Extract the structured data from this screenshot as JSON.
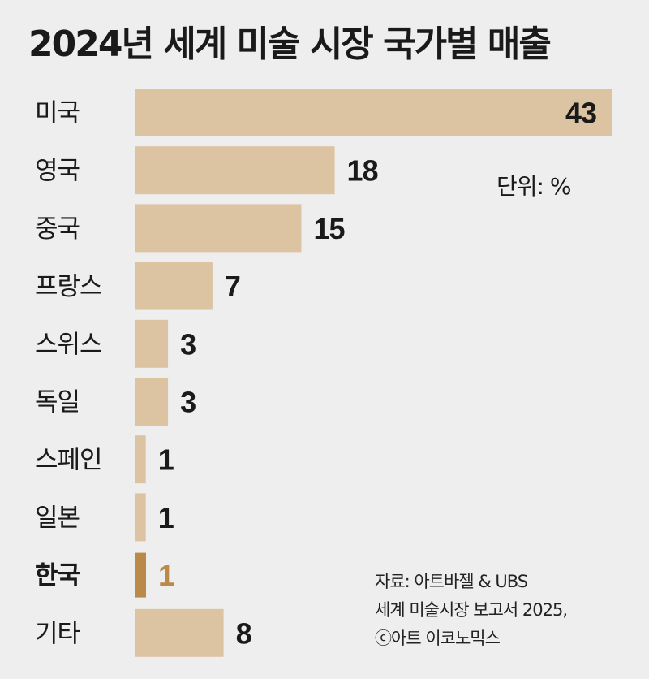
{
  "chart_data": {
    "type": "bar",
    "orientation": "horizontal",
    "title": "2024년 세계 미술 시장 국가별 매출",
    "unit": "단위: %",
    "categories": [
      "미국",
      "영국",
      "중국",
      "프랑스",
      "스위스",
      "독일",
      "스페인",
      "일본",
      "한국",
      "기타"
    ],
    "values": [
      43,
      18,
      15,
      7,
      3,
      3,
      1,
      1,
      1,
      8
    ],
    "highlight": "한국",
    "xlim": [
      0,
      43
    ],
    "grid": false,
    "legend": "none"
  },
  "colors": {
    "background": "#efeeee",
    "bar": "#dcc4a3",
    "highlight_bar": "#b98a4a",
    "highlight_text": "#b98a4a",
    "text": "#1a1a1a"
  },
  "source": {
    "line1": "자료: 아트바젤 & UBS",
    "line2": "세계 미술시장 보고서 2025,",
    "line3": "ⓒ아트 이코노믹스"
  }
}
